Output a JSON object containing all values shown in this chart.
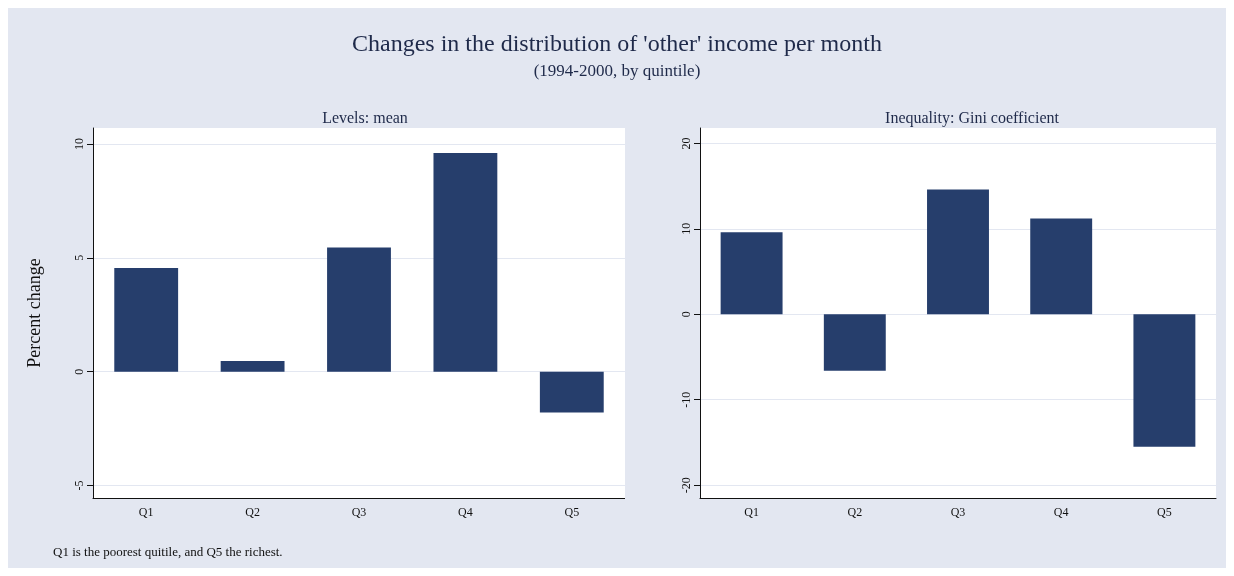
{
  "chart_data": [
    {
      "type": "other",
      "title": "Changes in the distribution of 'other' income per month",
      "subtitle": "(1994-2000, by quintile)"
    },
    {
      "type": "bar",
      "title": "Levels: mean",
      "ylabel": "Percent change",
      "categories": [
        "Q1",
        "Q2",
        "Q3",
        "Q4",
        "Q5"
      ],
      "values": [
        4.55,
        0.47,
        5.45,
        9.6,
        -1.8
      ],
      "color": "#263e6c",
      "ylim": [
        -5.55,
        10.7
      ],
      "yticks": [
        -5,
        0,
        5,
        10
      ],
      "grid": "y",
      "annotations": [
        "Q1 is the poorest quitile, and Q5 the richest."
      ]
    },
    {
      "type": "bar",
      "title": "Inequality: Gini coefficient",
      "categories": [
        "Q1",
        "Q2",
        "Q3",
        "Q4",
        "Q5"
      ],
      "values": [
        9.6,
        -6.6,
        14.6,
        11.2,
        -15.5
      ],
      "color": "#263e6c",
      "ylim": [
        -21.5,
        21.8
      ],
      "yticks": [
        -20,
        -10,
        0,
        10,
        20
      ],
      "grid": "y"
    }
  ]
}
